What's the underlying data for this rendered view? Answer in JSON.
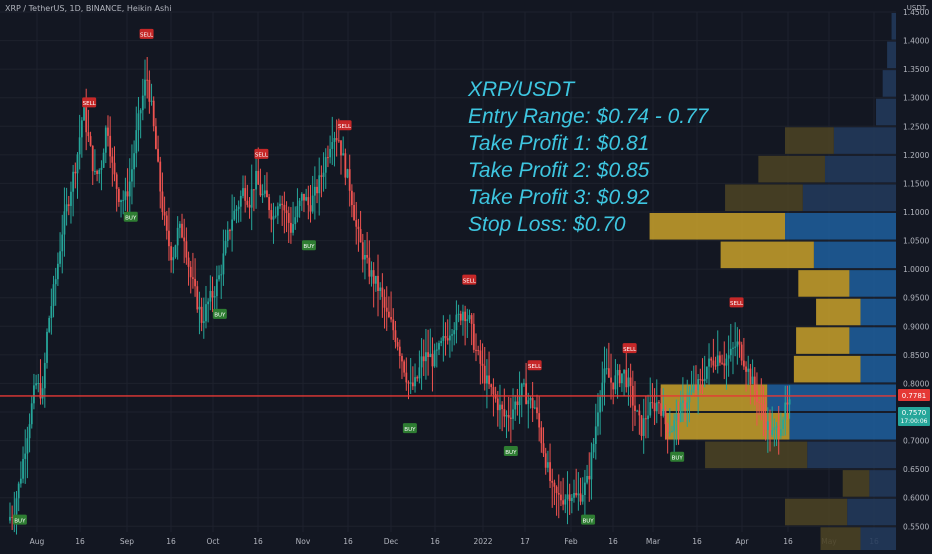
{
  "header": {
    "symbol": "XRP / TetherUS, 1D, BINANCE, Heikin Ashi",
    "currency": "USDT"
  },
  "colors": {
    "bg": "#131722",
    "grid": "#1e222d",
    "up": "#26a69a",
    "down": "#ef5350",
    "vp_up": "#1e5f9e",
    "vp_down": "#c9a12a",
    "vp_faint": "#22385a",
    "vp_faint2": "#4a4124",
    "text": "#b2b5be",
    "annotation": "#3ec6e0",
    "hline": "#e53935"
  },
  "annotation": [
    "XRP/USDT",
    "Entry Range: $0.74 - 0.77",
    "Take Profit 1: $0.81",
    "Take Profit 2: $0.85",
    "Take Profit 3: $0.92",
    "Stop Loss: $0.70"
  ],
  "price_badges": {
    "line_price": "0.7781",
    "last_price": "0.7570",
    "countdown": "17:00:06"
  },
  "chart_data": {
    "type": "candlestick",
    "title": "XRP / TetherUS, 1D, BINANCE, Heikin Ashi",
    "y_axis": {
      "min": 0.54,
      "max": 1.45,
      "ticks": [
        "1.4500",
        "1.4000",
        "1.3500",
        "1.3000",
        "1.2500",
        "1.2000",
        "1.1500",
        "1.1000",
        "1.0500",
        "1.0000",
        "0.9500",
        "0.9000",
        "0.8500",
        "0.8000",
        "0.7500",
        "0.7000",
        "0.6500",
        "0.6000",
        "0.5500"
      ]
    },
    "x_axis": {
      "ticks": [
        "Aug",
        "16",
        "Sep",
        "16",
        "Oct",
        "16",
        "Nov",
        "16",
        "Dec",
        "16",
        "2022",
        "17",
        "Feb",
        "16",
        "Mar",
        "16",
        "Apr",
        "16",
        "May",
        "16"
      ]
    },
    "horizontal_line": 0.7781,
    "price_path": [
      [
        0,
        0.56
      ],
      [
        6,
        0.58
      ],
      [
        12,
        0.63
      ],
      [
        20,
        0.72
      ],
      [
        28,
        0.8
      ],
      [
        35,
        0.78
      ],
      [
        40,
        0.9
      ],
      [
        48,
        0.98
      ],
      [
        55,
        1.07
      ],
      [
        62,
        1.13
      ],
      [
        70,
        1.2
      ],
      [
        76,
        1.28
      ],
      [
        82,
        1.22
      ],
      [
        88,
        1.16
      ],
      [
        94,
        1.18
      ],
      [
        100,
        1.26
      ],
      [
        106,
        1.17
      ],
      [
        112,
        1.13
      ],
      [
        118,
        1.12
      ],
      [
        124,
        1.16
      ],
      [
        130,
        1.24
      ],
      [
        136,
        1.3
      ],
      [
        140,
        1.34
      ],
      [
        145,
        1.28
      ],
      [
        150,
        1.2
      ],
      [
        155,
        1.12
      ],
      [
        160,
        1.06
      ],
      [
        166,
        1.02
      ],
      [
        172,
        1.07
      ],
      [
        178,
        1.06
      ],
      [
        184,
        0.99
      ],
      [
        190,
        0.95
      ],
      [
        196,
        0.91
      ],
      [
        202,
        0.94
      ],
      [
        208,
        0.96
      ],
      [
        214,
        0.99
      ],
      [
        220,
        1.04
      ],
      [
        226,
        1.09
      ],
      [
        232,
        1.11
      ],
      [
        238,
        1.14
      ],
      [
        244,
        1.12
      ],
      [
        250,
        1.16
      ],
      [
        256,
        1.13
      ],
      [
        262,
        1.12
      ],
      [
        268,
        1.09
      ],
      [
        274,
        1.13
      ],
      [
        280,
        1.1
      ],
      [
        286,
        1.07
      ],
      [
        292,
        1.1
      ],
      [
        298,
        1.13
      ],
      [
        304,
        1.11
      ],
      [
        310,
        1.13
      ],
      [
        316,
        1.16
      ],
      [
        322,
        1.2
      ],
      [
        328,
        1.24
      ],
      [
        334,
        1.23
      ],
      [
        340,
        1.18
      ],
      [
        346,
        1.14
      ],
      [
        352,
        1.07
      ],
      [
        358,
        1.03
      ],
      [
        364,
        1.0
      ],
      [
        370,
        0.98
      ],
      [
        376,
        0.96
      ],
      [
        382,
        0.92
      ],
      [
        388,
        0.9
      ],
      [
        394,
        0.87
      ],
      [
        400,
        0.83
      ],
      [
        406,
        0.79
      ],
      [
        412,
        0.8
      ],
      [
        418,
        0.84
      ],
      [
        424,
        0.85
      ],
      [
        430,
        0.84
      ],
      [
        436,
        0.86
      ],
      [
        442,
        0.88
      ],
      [
        448,
        0.9
      ],
      [
        454,
        0.91
      ],
      [
        460,
        0.93
      ],
      [
        466,
        0.91
      ],
      [
        472,
        0.86
      ],
      [
        478,
        0.83
      ],
      [
        484,
        0.8
      ],
      [
        490,
        0.78
      ],
      [
        496,
        0.76
      ],
      [
        502,
        0.74
      ],
      [
        508,
        0.75
      ],
      [
        514,
        0.77
      ],
      [
        520,
        0.79
      ],
      [
        526,
        0.77
      ],
      [
        532,
        0.76
      ],
      [
        538,
        0.71
      ],
      [
        544,
        0.66
      ],
      [
        550,
        0.61
      ],
      [
        556,
        0.6
      ],
      [
        562,
        0.6
      ],
      [
        568,
        0.61
      ],
      [
        574,
        0.6
      ],
      [
        580,
        0.61
      ],
      [
        586,
        0.63
      ],
      [
        592,
        0.7
      ],
      [
        598,
        0.79
      ],
      [
        604,
        0.82
      ],
      [
        610,
        0.8
      ],
      [
        616,
        0.81
      ],
      [
        622,
        0.82
      ],
      [
        628,
        0.79
      ],
      [
        634,
        0.75
      ],
      [
        640,
        0.72
      ],
      [
        646,
        0.75
      ],
      [
        652,
        0.76
      ],
      [
        658,
        0.77
      ],
      [
        664,
        0.73
      ],
      [
        670,
        0.72
      ],
      [
        676,
        0.74
      ],
      [
        682,
        0.76
      ],
      [
        688,
        0.78
      ],
      [
        694,
        0.79
      ],
      [
        700,
        0.8
      ],
      [
        706,
        0.83
      ],
      [
        712,
        0.84
      ],
      [
        718,
        0.85
      ],
      [
        724,
        0.84
      ],
      [
        730,
        0.85
      ],
      [
        736,
        0.87
      ],
      [
        742,
        0.85
      ],
      [
        748,
        0.82
      ],
      [
        754,
        0.79
      ],
      [
        760,
        0.76
      ],
      [
        766,
        0.73
      ],
      [
        772,
        0.71
      ],
      [
        778,
        0.72
      ],
      [
        784,
        0.75
      ],
      [
        790,
        0.76
      ]
    ],
    "signals": [
      {
        "label": "BUY",
        "type": "buy",
        "t": 12
      },
      {
        "label": "SELL",
        "type": "sell",
        "t": 82
      },
      {
        "label": "BUY",
        "type": "buy",
        "t": 124
      },
      {
        "label": "SELL",
        "type": "sell",
        "t": 140
      },
      {
        "label": "BUY",
        "type": "buy",
        "t": 214
      },
      {
        "label": "SELL",
        "type": "sell",
        "t": 256
      },
      {
        "label": "BUY",
        "type": "buy",
        "t": 304
      },
      {
        "label": "SELL",
        "type": "sell",
        "t": 340
      },
      {
        "label": "BUY",
        "type": "buy",
        "t": 406
      },
      {
        "label": "SELL",
        "type": "sell",
        "t": 466
      },
      {
        "label": "BUY",
        "type": "buy",
        "t": 508
      },
      {
        "label": "SELL",
        "type": "sell",
        "t": 532
      },
      {
        "label": "BUY",
        "type": "buy",
        "t": 586
      },
      {
        "label": "SELL",
        "type": "sell",
        "t": 628
      },
      {
        "label": "BUY",
        "type": "buy",
        "t": 676
      },
      {
        "label": "SELL",
        "type": "sell",
        "t": 736
      }
    ],
    "volume_profile": [
      {
        "price": 1.425,
        "up": 0.02,
        "down": 0.0
      },
      {
        "price": 1.375,
        "up": 0.04,
        "down": 0.0
      },
      {
        "price": 1.325,
        "up": 0.06,
        "down": 0.0
      },
      {
        "price": 1.275,
        "up": 0.09,
        "down": 0.0
      },
      {
        "price": 1.225,
        "up": 0.28,
        "down": 0.22
      },
      {
        "price": 1.175,
        "up": 0.32,
        "down": 0.3
      },
      {
        "price": 1.125,
        "up": 0.42,
        "down": 0.35
      },
      {
        "price": 1.075,
        "up": 0.5,
        "down": 0.61
      },
      {
        "price": 1.025,
        "up": 0.37,
        "down": 0.42
      },
      {
        "price": 0.975,
        "up": 0.21,
        "down": 0.23
      },
      {
        "price": 0.925,
        "up": 0.16,
        "down": 0.2
      },
      {
        "price": 0.875,
        "up": 0.21,
        "down": 0.24
      },
      {
        "price": 0.825,
        "up": 0.16,
        "down": 0.3
      },
      {
        "price": 0.775,
        "up": 0.58,
        "down": 0.48
      },
      {
        "price": 0.725,
        "up": 0.48,
        "down": 0.56
      },
      {
        "price": 0.675,
        "up": 0.4,
        "down": 0.46
      },
      {
        "price": 0.625,
        "up": 0.12,
        "down": 0.12
      },
      {
        "price": 0.575,
        "up": 0.22,
        "down": 0.28
      },
      {
        "price": 0.525,
        "up": 0.16,
        "down": 0.18
      }
    ]
  }
}
